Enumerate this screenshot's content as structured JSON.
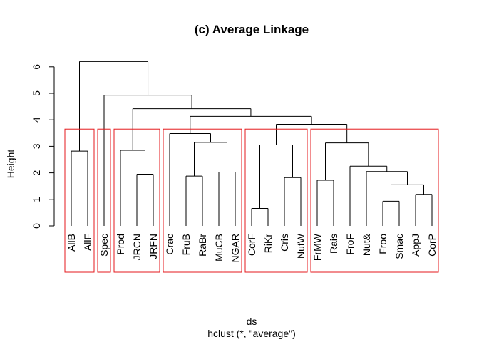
{
  "chart_data": {
    "type": "dendrogram",
    "title": "(c) Average Linkage",
    "ylabel": "Height",
    "xlabel": "ds",
    "sub": "hclust (*, \"average\")",
    "ylim": [
      0,
      6.2
    ],
    "yticks": [
      0,
      1,
      2,
      3,
      4,
      5,
      6
    ],
    "leaves": [
      "AllB",
      "AllF",
      "Spec",
      "Prod",
      "JRCN",
      "JRFN",
      "Crac",
      "FruB",
      "RaBr",
      "MuCB",
      "NGAR",
      "CorF",
      "RiKr",
      "Cris",
      "NutW",
      "FrMW",
      "Rais",
      "FroF",
      "Nut&",
      "Froo",
      "Smac",
      "AppJ",
      "CorP"
    ],
    "merges": [
      {
        "a": "L0",
        "b": "L1",
        "height": 2.82
      },
      {
        "a": "L4",
        "b": "L5",
        "height": 1.95
      },
      {
        "a": "L3",
        "b": "M1",
        "height": 2.85
      },
      {
        "a": "L7",
        "b": "L8",
        "height": 1.88
      },
      {
        "a": "L9",
        "b": "L10",
        "height": 2.03
      },
      {
        "a": "M3",
        "b": "M4",
        "height": 3.15
      },
      {
        "a": "L6",
        "b": "M5",
        "height": 3.48
      },
      {
        "a": "L11",
        "b": "L12",
        "height": 0.66
      },
      {
        "a": "L13",
        "b": "L14",
        "height": 1.82
      },
      {
        "a": "M7",
        "b": "M8",
        "height": 3.05
      },
      {
        "a": "L19",
        "b": "L20",
        "height": 0.93
      },
      {
        "a": "L21",
        "b": "L22",
        "height": 1.19
      },
      {
        "a": "M10",
        "b": "M11",
        "height": 1.55
      },
      {
        "a": "L18",
        "b": "M12",
        "height": 2.05
      },
      {
        "a": "L17",
        "b": "M13",
        "height": 2.25
      },
      {
        "a": "L15",
        "b": "L16",
        "height": 1.72
      },
      {
        "a": "M15",
        "b": "M14",
        "height": 3.13
      },
      {
        "a": "M9",
        "b": "M16",
        "height": 3.83
      },
      {
        "a": "M6",
        "b": "M17",
        "height": 4.13
      },
      {
        "a": "M2",
        "b": "M18",
        "height": 4.42
      },
      {
        "a": "L2",
        "b": "M19",
        "height": 4.93
      },
      {
        "a": "M0",
        "b": "M20",
        "height": 6.2
      }
    ],
    "clusters": [
      [
        0,
        1
      ],
      [
        2,
        2
      ],
      [
        3,
        5
      ],
      [
        6,
        10
      ],
      [
        11,
        14
      ],
      [
        15,
        22
      ]
    ],
    "cluster_rect_height": 3.65,
    "colors": {
      "tree": "#000000",
      "rect": "#e41a1c"
    }
  }
}
